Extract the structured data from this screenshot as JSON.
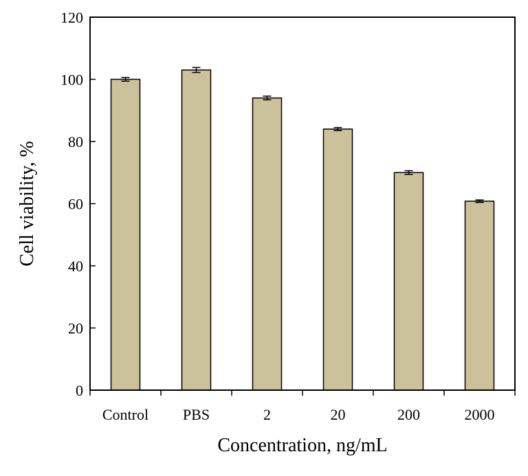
{
  "chart_data": {
    "type": "bar",
    "title": "",
    "xlabel": "Concentration, ng/mL",
    "ylabel": "Cell viability, %",
    "categories": [
      "Control",
      "PBS",
      "2",
      "20",
      "200",
      "2000"
    ],
    "values": [
      100,
      103,
      94,
      84,
      70,
      60.8
    ],
    "errors": [
      0.6,
      0.8,
      0.6,
      0.5,
      0.6,
      0.4
    ],
    "ylim": [
      0,
      120
    ],
    "yticks": [
      0,
      20,
      40,
      60,
      80,
      100,
      120
    ],
    "ytick_labels": [
      "0",
      "20",
      "40",
      "60",
      "80",
      "100",
      "120"
    ],
    "grid": false,
    "legend": "none",
    "colors": {
      "bar_fill": "#cbc19b",
      "bar_stroke": "#000000",
      "axis": "#000000"
    }
  }
}
